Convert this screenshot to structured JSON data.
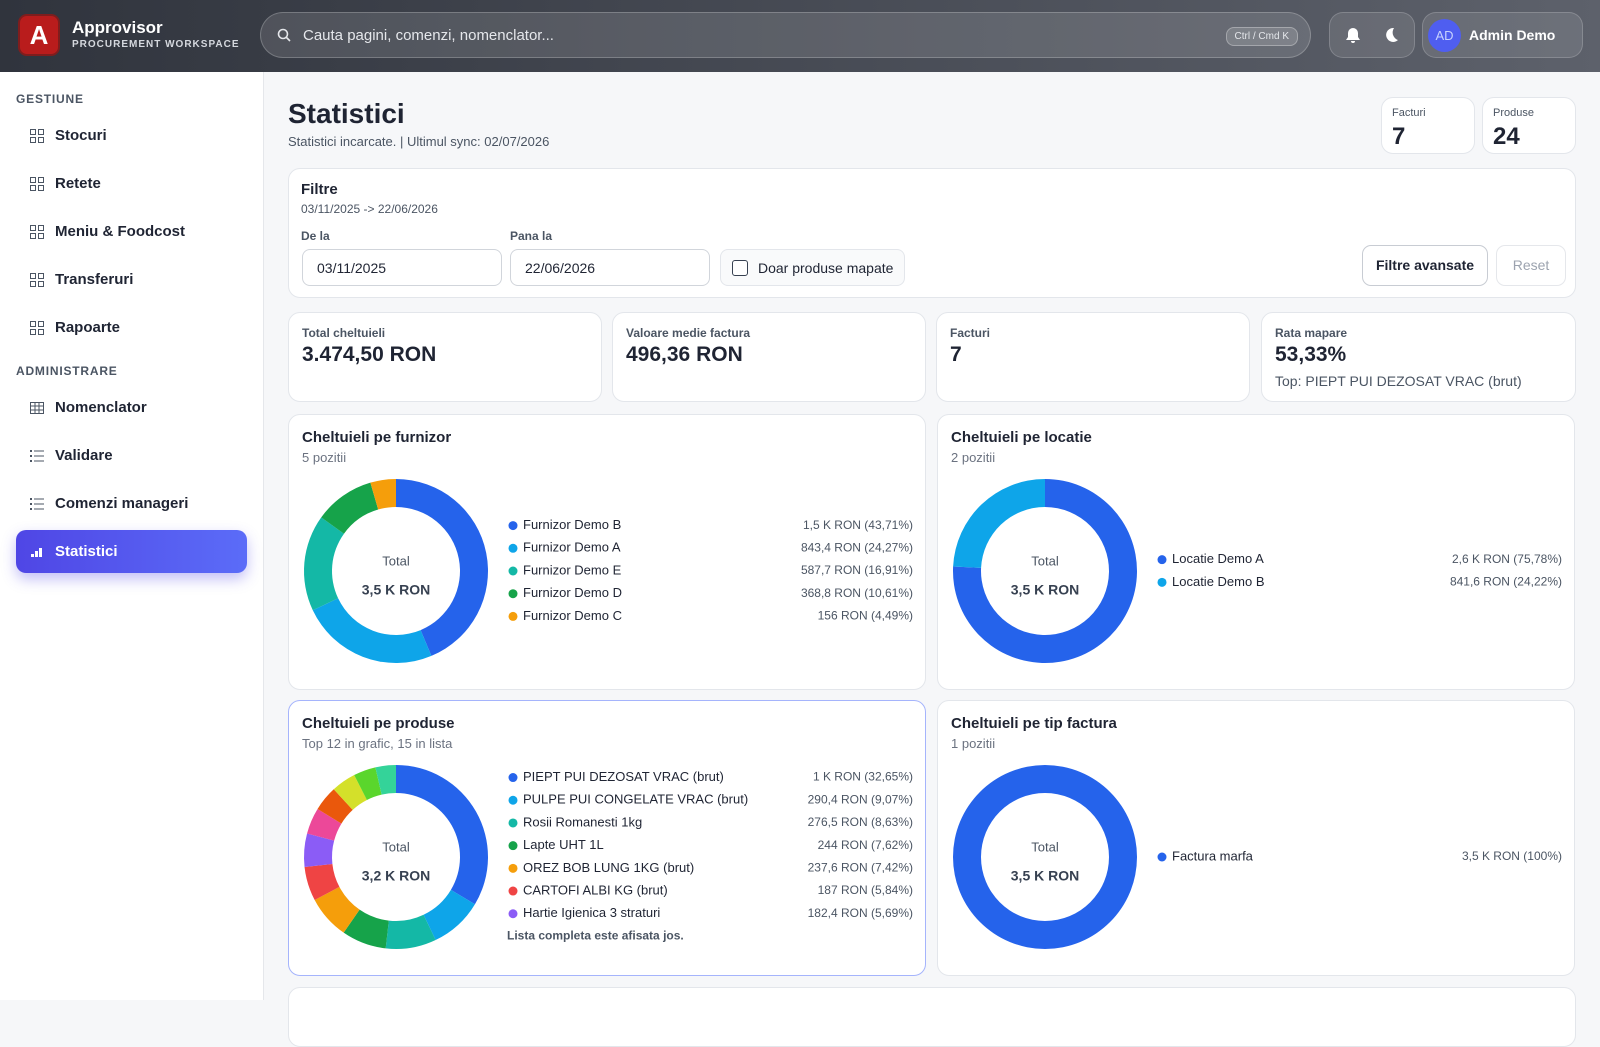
{
  "header": {
    "app_name": "Approvisor",
    "app_subtitle": "PROCUREMENT WORKSPACE",
    "search_placeholder": "Cauta pagini, comenzi, nomenclator...",
    "shortcut": "Ctrl / Cmd K",
    "avatar": "AD",
    "user": "Admin Demo"
  },
  "sidebar": {
    "sections": [
      {
        "title": "GESTIUNE",
        "items": [
          "Stocuri",
          "Retete",
          "Meniu & Foodcost",
          "Transferuri",
          "Rapoarte"
        ]
      },
      {
        "title": "ADMINISTRARE",
        "items": [
          "Nomenclator",
          "Validare",
          "Comenzi manageri",
          "Statistici"
        ]
      }
    ],
    "active": "Statistici"
  },
  "page": {
    "title": "Statistici",
    "status": "Statistici incarcate. | Ultimul sync: 02/07/2026",
    "counters": [
      {
        "label": "Facturi",
        "value": 7
      },
      {
        "label": "Produse",
        "value": 24
      }
    ]
  },
  "filters": {
    "title": "Filtre",
    "range": "03/11/2025 -> 22/06/2026",
    "from_label": "De la",
    "from": "03/11/2025",
    "to_label": "Pana la",
    "to": "22/06/2026",
    "mapped_only": "Doar produse mapate",
    "advanced": "Filtre avansate",
    "reset": "Reset"
  },
  "kpis": [
    {
      "label": "Total cheltuieli",
      "value": "3.474,50 RON"
    },
    {
      "label": "Valoare medie factura",
      "value": "496,36 RON"
    },
    {
      "label": "Facturi",
      "value": "7"
    },
    {
      "label": "Rata mapare",
      "value": "53,33%",
      "note": "Top: PIEPT PUI DEZOSAT VRAC (brut)"
    }
  ],
  "chart_data": [
    {
      "type": "pie",
      "title": "Cheltuieli pe furnizor",
      "subtitle": "5 pozitii",
      "center_label": "Total",
      "center_value": "3,5 K RON",
      "categories": [
        "Furnizor Demo B",
        "Furnizor Demo A",
        "Furnizor Demo E",
        "Furnizor Demo D",
        "Furnizor Demo C"
      ],
      "values": [
        43.71,
        24.27,
        16.91,
        10.61,
        4.49
      ],
      "value_labels": [
        "1,5 K RON (43,71%)",
        "843,4 RON (24,27%)",
        "587,7 RON (16,91%)",
        "368,8 RON (10,61%)",
        "156 RON (4,49%)"
      ],
      "colors": [
        "#2563eb",
        "#0ea5e9",
        "#14b8a6",
        "#16a34a",
        "#f59e0b"
      ]
    },
    {
      "type": "pie",
      "title": "Cheltuieli pe locatie",
      "subtitle": "2 pozitii",
      "center_label": "Total",
      "center_value": "3,5 K RON",
      "categories": [
        "Locatie Demo A",
        "Locatie Demo B"
      ],
      "values": [
        75.78,
        24.22
      ],
      "value_labels": [
        "2,6 K RON (75,78%)",
        "841,6 RON (24,22%)"
      ],
      "colors": [
        "#2563eb",
        "#0ea5e9"
      ]
    },
    {
      "type": "pie",
      "title": "Cheltuieli pe produse",
      "subtitle": "Top 12 in grafic, 15 in lista",
      "center_label": "Total",
      "center_value": "3,2 K RON",
      "categories": [
        "PIEPT PUI DEZOSAT VRAC (brut)",
        "PULPE PUI CONGELATE VRAC (brut)",
        "Rosii Romanesti 1kg",
        "Lapte UHT 1L",
        "OREZ BOB LUNG 1KG (brut)",
        "CARTOFI ALBI KG (brut)",
        "Hartie Igienica 3 straturi",
        null,
        null,
        null,
        null,
        null
      ],
      "values": [
        32.65,
        9.07,
        8.63,
        7.62,
        7.42,
        5.84,
        5.69,
        4.5,
        4.3,
        4.2,
        3.8,
        3.5
      ],
      "value_labels": [
        "1 K RON (32,65%)",
        "290,4 RON (9,07%)",
        "276,5 RON (8,63%)",
        "244 RON (7,62%)",
        "237,6 RON (7,42%)",
        "187 RON (5,84%)",
        "182,4 RON (5,69%)",
        null,
        null,
        null,
        null,
        null
      ],
      "colors": [
        "#2563eb",
        "#0ea5e9",
        "#14b8a6",
        "#16a34a",
        "#f59e0b",
        "#ef4444",
        "#8b5cf6",
        "#ec4899",
        "#ea580c",
        "#d4e02a",
        "#5ad62c",
        "#34d399"
      ],
      "note": "Lista completa este afisata jos."
    },
    {
      "type": "pie",
      "title": "Cheltuieli pe tip factura",
      "subtitle": "1 pozitii",
      "center_label": "Total",
      "center_value": "3,5 K RON",
      "categories": [
        "Factura marfa"
      ],
      "values": [
        100
      ],
      "value_labels": [
        "3,5 K RON (100%)"
      ],
      "colors": [
        "#2563eb"
      ]
    }
  ]
}
